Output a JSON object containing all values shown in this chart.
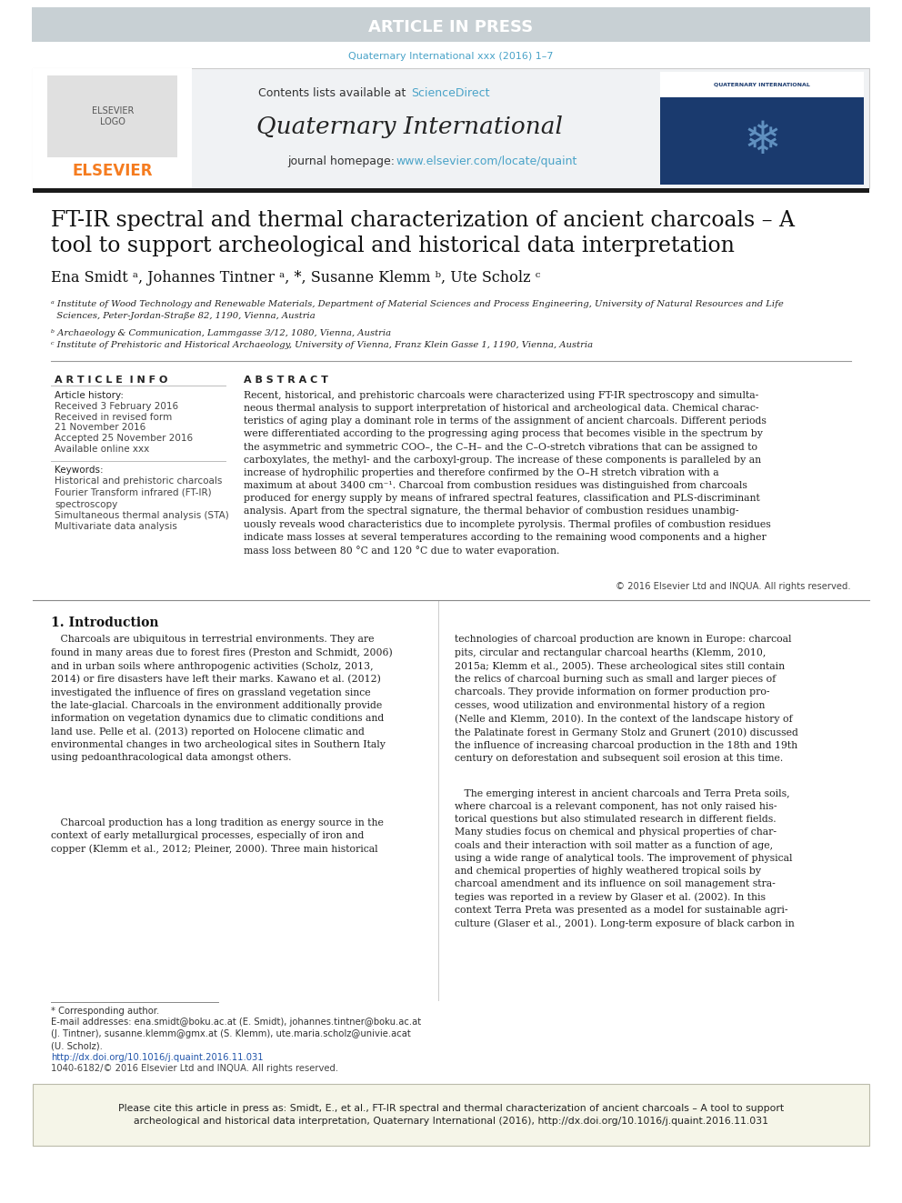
{
  "article_in_press_text": "ARTICLE IN PRESS",
  "article_in_press_bg": "#c8d0d4",
  "article_in_press_text_color": "#ffffff",
  "journal_ref": "Quaternary International xxx (2016) 1–7",
  "journal_ref_color": "#4aa3c8",
  "contents_text": "Contents lists available at ",
  "sciencedirect_text": "ScienceDirect",
  "sciencedirect_color": "#4aa3c8",
  "journal_name": "Quaternary International",
  "journal_homepage_text": "journal homepage: ",
  "journal_homepage_url": "www.elsevier.com/locate/quaint",
  "journal_homepage_url_color": "#4aa3c8",
  "elsevier_color": "#f57c20",
  "paper_title_line1": "FT-IR spectral and thermal characterization of ancient charcoals – A",
  "paper_title_line2": "tool to support archeological and historical data interpretation",
  "authors": "Ena Smidt ᵃ, Johannes Tintner ᵃ, *, Susanne Klemm ᵇ, Ute Scholz ᶜ",
  "affil_a": "ᵃ Institute of Wood Technology and Renewable Materials, Department of Material Sciences and Process Engineering, University of Natural Resources and Life\n  Sciences, Peter-Jordan-Straße 82, 1190, Vienna, Austria",
  "affil_b": "ᵇ Archaeology & Communication, Lammgasse 3/12, 1080, Vienna, Austria",
  "affil_c": "ᶜ Institute of Prehistoric and Historical Archaeology, University of Vienna, Franz Klein Gasse 1, 1190, Vienna, Austria",
  "article_info_title": "A R T I C L E  I N F O",
  "article_history_title": "Article history:",
  "received1": "Received 3 February 2016",
  "received2": "Received in revised form",
  "received2b": "21 November 2016",
  "accepted": "Accepted 25 November 2016",
  "available": "Available online xxx",
  "keywords_title": "Keywords:",
  "keywords": [
    "Historical and prehistoric charcoals",
    "Fourier Transform infrared (FT-IR)\nspectroscopy",
    "Simultaneous thermal analysis (STA)",
    "Multivariate data analysis"
  ],
  "abstract_title": "A B S T R A C T",
  "abstract_text": "Recent, historical, and prehistoric charcoals were characterized using FT-IR spectroscopy and simulta-\nneous thermal analysis to support interpretation of historical and archeological data. Chemical charac-\nteristics of aging play a dominant role in terms of the assignment of ancient charcoals. Different periods\nwere differentiated according to the progressing aging process that becomes visible in the spectrum by\nthe asymmetric and symmetric COO–, the C–H– and the C–O-stretch vibrations that can be assigned to\ncarboxylates, the methyl- and the carboxyl-group. The increase of these components is paralleled by an\nincrease of hydrophilic properties and therefore confirmed by the O–H stretch vibration with a\nmaximum at about 3400 cm⁻¹. Charcoal from combustion residues was distinguished from charcoals\nproduced for energy supply by means of infrared spectral features, classification and PLS-discriminant\nanalysis. Apart from the spectral signature, the thermal behavior of combustion residues unambig-\nuously reveals wood characteristics due to incomplete pyrolysis. Thermal profiles of combustion residues\nindicate mass losses at several temperatures according to the remaining wood components and a higher\nmass loss between 80 °C and 120 °C due to water evaporation.",
  "copyright_text": "© 2016 Elsevier Ltd and INQUA. All rights reserved.",
  "section1_title": "1. Introduction",
  "intro_col1": "   Charcoals are ubiquitous in terrestrial environments. They are\nfound in many areas due to forest fires (Preston and Schmidt, 2006)\nand in urban soils where anthropogenic activities (Scholz, 2013,\n2014) or fire disasters have left their marks. Kawano et al. (2012)\ninvestigated the influence of fires on grassland vegetation since\nthe late-glacial. Charcoals in the environment additionally provide\ninformation on vegetation dynamics due to climatic conditions and\nland use. Pelle et al. (2013) reported on Holocene climatic and\nenvironmental changes in two archeological sites in Southern Italy\nusing pedoanthracological data amongst others.",
  "intro_col1b": "   Charcoal production has a long tradition as energy source in the\ncontext of early metallurgical processes, especially of iron and\ncopper (Klemm et al., 2012; Pleiner, 2000). Three main historical",
  "intro_col2": "technologies of charcoal production are known in Europe: charcoal\npits, circular and rectangular charcoal hearths (Klemm, 2010,\n2015a; Klemm et al., 2005). These archeological sites still contain\nthe relics of charcoal burning such as small and larger pieces of\ncharcoals. They provide information on former production pro-\ncesses, wood utilization and environmental history of a region\n(Nelle and Klemm, 2010). In the context of the landscape history of\nthe Palatinate forest in Germany Stolz and Grunert (2010) discussed\nthe influence of increasing charcoal production in the 18th and 19th\ncentury on deforestation and subsequent soil erosion at this time.",
  "intro_col2b": "   The emerging interest in ancient charcoals and Terra Preta soils,\nwhere charcoal is a relevant component, has not only raised his-\ntorical questions but also stimulated research in different fields.\nMany studies focus on chemical and physical properties of char-\ncoals and their interaction with soil matter as a function of age,\nusing a wide range of analytical tools. The improvement of physical\nand chemical properties of highly weathered tropical soils by\ncharcoal amendment and its influence on soil management stra-\ntegies was reported in a review by Glaser et al. (2002). In this\ncontext Terra Preta was presented as a model for sustainable agri-\nculture (Glaser et al., 2001). Long-term exposure of black carbon in",
  "corresponding_author_note": "* Corresponding author.",
  "email_note": "E-mail addresses: ena.smidt@boku.ac.at (E. Smidt), johannes.tintner@boku.ac.at\n(J. Tintner), susanne.klemm@gmx.at (S. Klemm), ute.maria.scholz@univie.acat\n(U. Scholz).",
  "doi_text": "http://dx.doi.org/10.1016/j.quaint.2016.11.031",
  "issn_text": "1040-6182/© 2016 Elsevier Ltd and INQUA. All rights reserved.",
  "citation_box": "Please cite this article in press as: Smidt, E., et al., FT-IR spectral and thermal characterization of ancient charcoals – A tool to support\narcheological and historical data interpretation, Quaternary International (2016), http://dx.doi.org/10.1016/j.quaint.2016.11.031",
  "citation_box_bg": "#f5f5e8",
  "link_color": "#2255aa",
  "body_bg": "#ffffff",
  "text_color": "#000000"
}
